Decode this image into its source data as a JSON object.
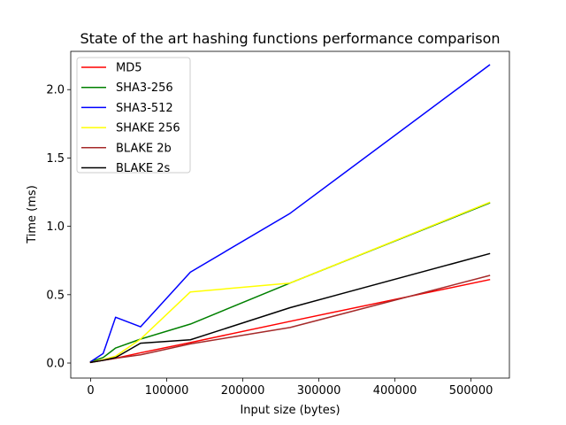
{
  "chart_data": {
    "type": "line",
    "title": "State of the art hashing functions performance comparison",
    "xlabel": "Input size (bytes)",
    "ylabel": "Time (ms)",
    "xlim": [
      -26214,
      550502
    ],
    "ylim": [
      -0.11,
      2.28
    ],
    "x_ticks": [
      0,
      100000,
      200000,
      300000,
      400000,
      500000
    ],
    "x_tick_labels": [
      "0",
      "100000",
      "200000",
      "300000",
      "400000",
      "500000"
    ],
    "y_ticks": [
      0.0,
      0.5,
      1.0,
      1.5,
      2.0
    ],
    "y_tick_labels": [
      "0.0",
      "0.5",
      "1.0",
      "1.5",
      "2.0"
    ],
    "grid": false,
    "legend_position": "top-left",
    "series": [
      {
        "name": "MD5",
        "color": "#ff0000",
        "points": [
          [
            0,
            0.005
          ],
          [
            16384,
            0.02
          ],
          [
            32768,
            0.035
          ],
          [
            65536,
            0.075
          ],
          [
            131072,
            0.15
          ],
          [
            262144,
            0.305
          ],
          [
            524288,
            0.61
          ]
        ]
      },
      {
        "name": "SHA3-256",
        "color": "#008000",
        "points": [
          [
            0,
            0.01
          ],
          [
            16384,
            0.04
          ],
          [
            32768,
            0.11
          ],
          [
            65536,
            0.175
          ],
          [
            131072,
            0.285
          ],
          [
            262144,
            0.585
          ],
          [
            524288,
            1.17
          ]
        ]
      },
      {
        "name": "SHA3-512",
        "color": "#0000ff",
        "points": [
          [
            0,
            0.01
          ],
          [
            16384,
            0.07
          ],
          [
            32768,
            0.335
          ],
          [
            65536,
            0.265
          ],
          [
            131072,
            0.665
          ],
          [
            262144,
            1.095
          ],
          [
            524288,
            2.18
          ]
        ]
      },
      {
        "name": "SHAKE 256",
        "color": "#ffff00",
        "points": [
          [
            0,
            0.005
          ],
          [
            16384,
            0.025
          ],
          [
            32768,
            0.05
          ],
          [
            65536,
            0.175
          ],
          [
            131072,
            0.52
          ],
          [
            262144,
            0.585
          ],
          [
            524288,
            1.175
          ]
        ]
      },
      {
        "name": "BLAKE 2b",
        "color": "#a52a2a",
        "points": [
          [
            0,
            0.005
          ],
          [
            16384,
            0.02
          ],
          [
            32768,
            0.035
          ],
          [
            65536,
            0.06
          ],
          [
            131072,
            0.14
          ],
          [
            262144,
            0.26
          ],
          [
            524288,
            0.64
          ]
        ]
      },
      {
        "name": "BLAKE 2s",
        "color": "#000000",
        "points": [
          [
            0,
            0.005
          ],
          [
            16384,
            0.02
          ],
          [
            32768,
            0.04
          ],
          [
            65536,
            0.145
          ],
          [
            131072,
            0.17
          ],
          [
            262144,
            0.405
          ],
          [
            524288,
            0.8
          ]
        ]
      }
    ]
  }
}
